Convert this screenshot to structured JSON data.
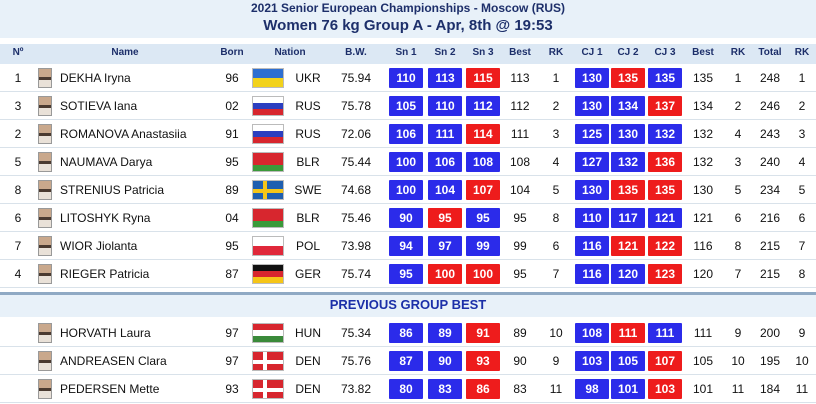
{
  "header": {
    "title": "2021 Senior European Championships - Moscow (RUS)",
    "subtitle": "Women 76 kg Group A - Apr, 8th @ 19:53"
  },
  "table": {
    "columns": [
      "Nº",
      "Name",
      "Born",
      "Nation",
      "B.W.",
      "Sn 1",
      "Sn 2",
      "Sn 3",
      "Best",
      "RK",
      "CJ 1",
      "CJ 2",
      "CJ 3",
      "Best",
      "RK",
      "Total",
      "RK"
    ],
    "rows": [
      [
        1,
        "DEKHA Iryna",
        "96",
        "UKR",
        75.94,
        {
          "value": 110,
          "color": "#2b2bea"
        },
        {
          "value": 113,
          "color": "#2b2bea"
        },
        {
          "value": 115,
          "color": "#ee1c1c"
        },
        113,
        1,
        {
          "value": 130,
          "color": "#2b2bea"
        },
        {
          "value": 135,
          "color": "#ee1c1c"
        },
        {
          "value": 135,
          "color": "#2b2bea"
        },
        135,
        1,
        248,
        1
      ],
      [
        3,
        "SOTIEVA Iana",
        "02",
        "RUS",
        75.78,
        {
          "value": 105,
          "color": "#2b2bea"
        },
        {
          "value": 110,
          "color": "#2b2bea"
        },
        {
          "value": 112,
          "color": "#2b2bea"
        },
        112,
        2,
        {
          "value": 130,
          "color": "#2b2bea"
        },
        {
          "value": 134,
          "color": "#2b2bea"
        },
        {
          "value": 137,
          "color": "#ee1c1c"
        },
        134,
        2,
        246,
        2
      ],
      [
        2,
        "ROMANOVA Anastasiia",
        "91",
        "RUS",
        72.06,
        {
          "value": 106,
          "color": "#2b2bea"
        },
        {
          "value": 111,
          "color": "#2b2bea"
        },
        {
          "value": 114,
          "color": "#ee1c1c"
        },
        111,
        3,
        {
          "value": 125,
          "color": "#2b2bea"
        },
        {
          "value": 130,
          "color": "#2b2bea"
        },
        {
          "value": 132,
          "color": "#2b2bea"
        },
        132,
        4,
        243,
        3
      ],
      [
        5,
        "NAUMAVA Darya",
        "95",
        "BLR",
        75.44,
        {
          "value": 100,
          "color": "#2b2bea"
        },
        {
          "value": 106,
          "color": "#2b2bea"
        },
        {
          "value": 108,
          "color": "#2b2bea"
        },
        108,
        4,
        {
          "value": 127,
          "color": "#2b2bea"
        },
        {
          "value": 132,
          "color": "#2b2bea"
        },
        {
          "value": 136,
          "color": "#ee1c1c"
        },
        132,
        3,
        240,
        4
      ],
      [
        8,
        "STRENIUS Patricia",
        "89",
        "SWE",
        74.68,
        {
          "value": 100,
          "color": "#2b2bea"
        },
        {
          "value": 104,
          "color": "#2b2bea"
        },
        {
          "value": 107,
          "color": "#ee1c1c"
        },
        104,
        5,
        {
          "value": 130,
          "color": "#2b2bea"
        },
        {
          "value": 135,
          "color": "#ee1c1c"
        },
        {
          "value": 135,
          "color": "#ee1c1c"
        },
        130,
        5,
        234,
        5
      ],
      [
        6,
        "LITOSHYK Ryna",
        "04",
        "BLR",
        75.46,
        {
          "value": 90,
          "color": "#2b2bea"
        },
        {
          "value": 95,
          "color": "#ee1c1c"
        },
        {
          "value": 95,
          "color": "#2b2bea"
        },
        95,
        8,
        {
          "value": 110,
          "color": "#2b2bea"
        },
        {
          "value": 117,
          "color": "#2b2bea"
        },
        {
          "value": 121,
          "color": "#2b2bea"
        },
        121,
        6,
        216,
        6
      ],
      [
        7,
        "WIOR Jiolanta",
        "95",
        "POL",
        73.98,
        {
          "value": 94,
          "color": "#2b2bea"
        },
        {
          "value": 97,
          "color": "#2b2bea"
        },
        {
          "value": 99,
          "color": "#2b2bea"
        },
        99,
        6,
        {
          "value": 116,
          "color": "#2b2bea"
        },
        {
          "value": 121,
          "color": "#ee1c1c"
        },
        {
          "value": 122,
          "color": "#ee1c1c"
        },
        116,
        8,
        215,
        7
      ],
      [
        4,
        "RIEGER Patricia",
        "87",
        "GER",
        75.74,
        {
          "value": 95,
          "color": "#2b2bea"
        },
        {
          "value": 100,
          "color": "#ee1c1c"
        },
        {
          "value": 100,
          "color": "#ee1c1c"
        },
        95,
        7,
        {
          "value": 116,
          "color": "#2b2bea"
        },
        {
          "value": 120,
          "color": "#2b2bea"
        },
        {
          "value": 123,
          "color": "#ee1c1c"
        },
        120,
        7,
        215,
        8
      ]
    ],
    "section_title": "PREVIOUS GROUP BEST",
    "previous_rows": [
      [
        "HORVATH Laura",
        "97",
        "HUN",
        75.34,
        {
          "value": 86,
          "color": "#2b2bea"
        },
        {
          "value": 89,
          "color": "#2b2bea"
        },
        {
          "value": 91,
          "color": "#ee1c1c"
        },
        89,
        10,
        {
          "value": 108,
          "color": "#2b2bea"
        },
        {
          "value": 111,
          "color": "#ee1c1c"
        },
        {
          "value": 111,
          "color": "#2b2bea"
        },
        111,
        9,
        200,
        9
      ],
      [
        "ANDREASEN Clara",
        "97",
        "DEN",
        75.76,
        {
          "value": 87,
          "color": "#2b2bea"
        },
        {
          "value": 90,
          "color": "#2b2bea"
        },
        {
          "value": 93,
          "color": "#ee1c1c"
        },
        90,
        9,
        {
          "value": 103,
          "color": "#2b2bea"
        },
        {
          "value": 105,
          "color": "#2b2bea"
        },
        {
          "value": 107,
          "color": "#ee1c1c"
        },
        105,
        10,
        195,
        10
      ],
      [
        "PEDERSEN Mette",
        "93",
        "DEN",
        73.82,
        {
          "value": 80,
          "color": "#2b2bea"
        },
        {
          "value": 83,
          "color": "#2b2bea"
        },
        {
          "value": 86,
          "color": "#ee1c1c"
        },
        83,
        11,
        {
          "value": 98,
          "color": "#2b2bea"
        },
        {
          "value": 101,
          "color": "#2b2bea"
        },
        {
          "value": 103,
          "color": "#ee1c1c"
        },
        101,
        11,
        184,
        11
      ]
    ]
  }
}
